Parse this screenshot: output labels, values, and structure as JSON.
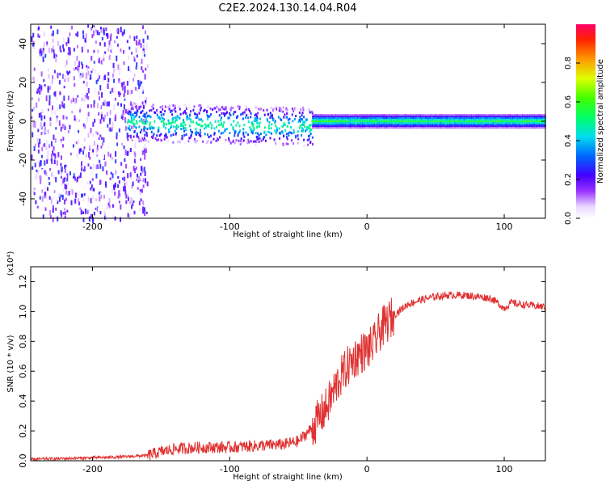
{
  "title": "C2E2.2024.130.14.04.R04",
  "chart_data": [
    {
      "type": "heatmap",
      "title": "C2E2.2024.130.14.04.R04",
      "xlabel": "Height of straight line (km)",
      "ylabel": "Frequency (Hz)",
      "xlim": [
        -245,
        130
      ],
      "ylim": [
        -50,
        50
      ],
      "xticks": [
        -200,
        -100,
        0,
        100
      ],
      "xtick_labels": [
        "-200",
        "-100",
        "0",
        "100"
      ],
      "yticks": [
        -40,
        -20,
        0,
        20,
        40
      ],
      "ytick_labels": [
        "-40",
        "-20",
        "0",
        "20",
        "40"
      ],
      "colorbar": {
        "label": "Normalized spectral amplitude",
        "range": [
          0.0,
          1.0
        ],
        "ticks": [
          0.0,
          0.2,
          0.4,
          0.6,
          0.8
        ],
        "tick_labels": [
          "0.0",
          "0.2",
          "0.4",
          "0.6",
          "0.8"
        ]
      },
      "regions": [
        {
          "name": "broadband noise",
          "x": [
            -245,
            -160
          ],
          "freq_range": [
            -50,
            50
          ],
          "amplitude": 0.15
        },
        {
          "name": "scattered band",
          "x": [
            -175,
            -40
          ],
          "freq_range": [
            -10,
            10
          ],
          "amplitude": 0.45
        },
        {
          "name": "narrow carrier line",
          "x": [
            -40,
            130
          ],
          "freq_range": [
            -2,
            2
          ],
          "amplitude": 0.55
        }
      ]
    },
    {
      "type": "line",
      "xlabel": "Height of straight line (km)",
      "ylabel": "SNR (10 * v/v)",
      "y_multiplier": "(x10⁴)",
      "xlim": [
        -245,
        130
      ],
      "ylim": [
        0.0,
        1.3
      ],
      "xticks": [
        -200,
        -100,
        0,
        100
      ],
      "xtick_labels": [
        "-200",
        "-100",
        "0",
        "100"
      ],
      "yticks": [
        0.0,
        0.2,
        0.4,
        0.6,
        0.8,
        1.0,
        1.2
      ],
      "ytick_labels": [
        "0.0",
        "0.2",
        "0.4",
        "0.6",
        "0.8",
        "1.0",
        "1.2"
      ],
      "color": "#e03030",
      "series": [
        {
          "name": "SNR",
          "x": [
            -245,
            -220,
            -200,
            -180,
            -160,
            -150,
            -140,
            -120,
            -100,
            -80,
            -60,
            -50,
            -40,
            -30,
            -25,
            -20,
            -15,
            -10,
            -5,
            0,
            5,
            10,
            20,
            30,
            40,
            50,
            60,
            70,
            80,
            90,
            95,
            100,
            105,
            110,
            120,
            130
          ],
          "y": [
            0.01,
            0.015,
            0.02,
            0.025,
            0.035,
            0.06,
            0.08,
            0.09,
            0.09,
            0.1,
            0.11,
            0.13,
            0.22,
            0.35,
            0.45,
            0.55,
            0.62,
            0.68,
            0.72,
            0.74,
            0.78,
            0.88,
            0.98,
            1.05,
            1.08,
            1.1,
            1.11,
            1.11,
            1.1,
            1.09,
            1.06,
            1.02,
            1.06,
            1.05,
            1.04,
            1.03
          ]
        }
      ]
    }
  ]
}
